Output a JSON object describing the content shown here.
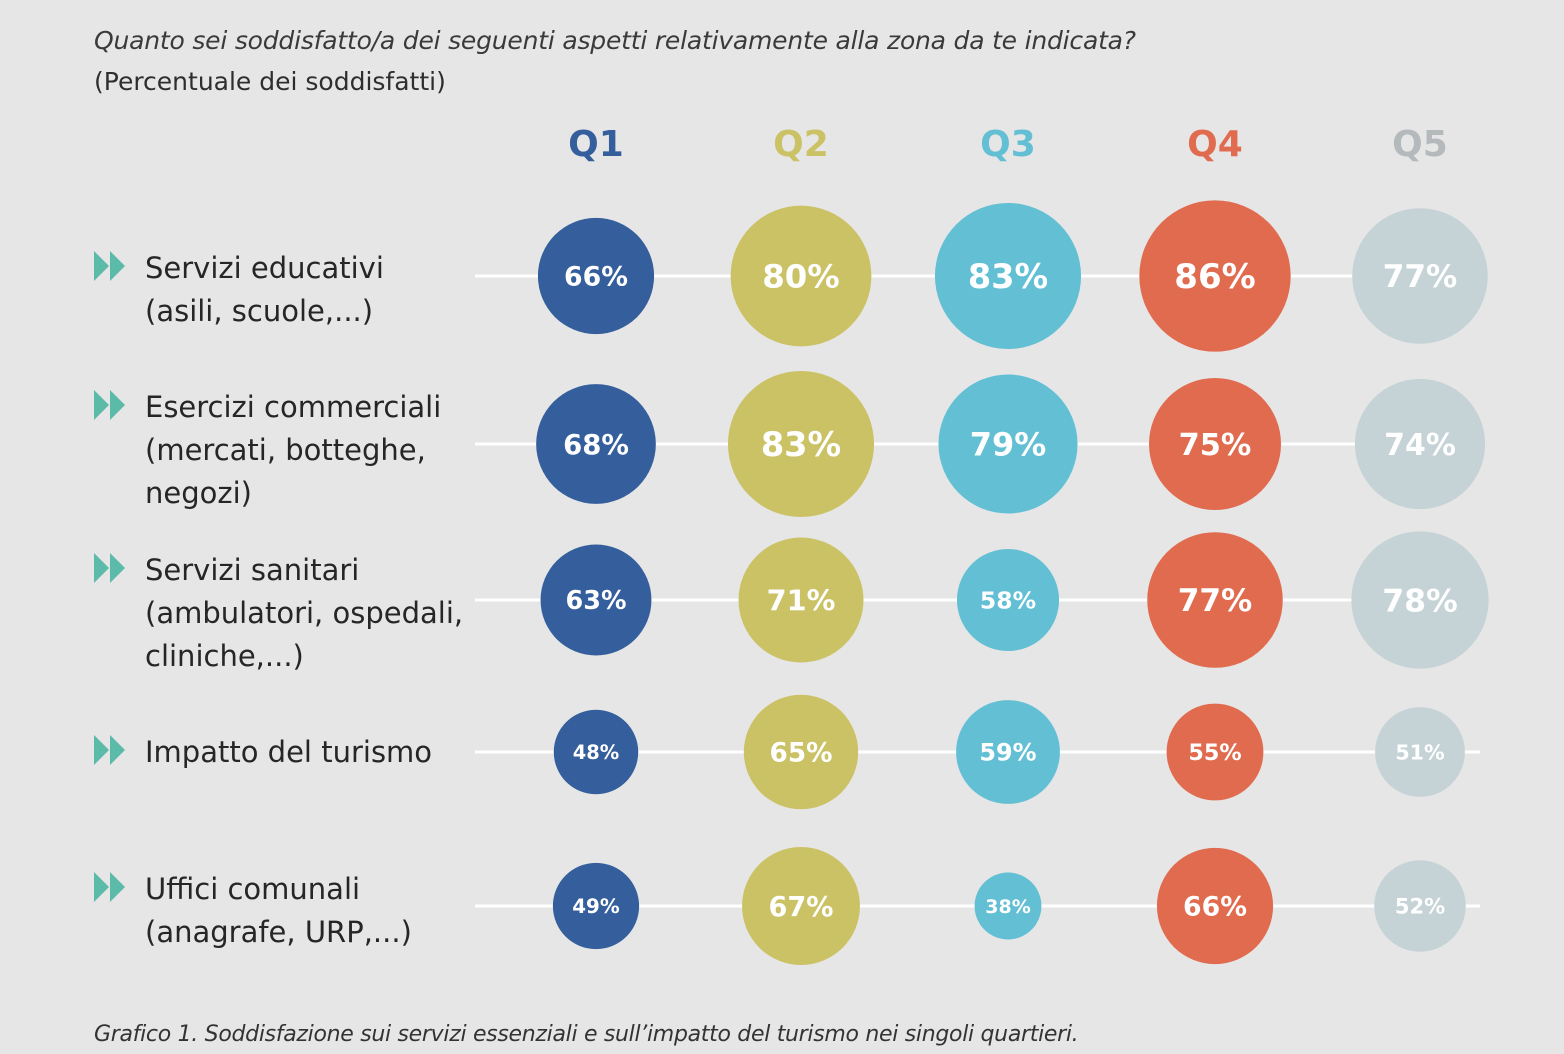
{
  "title": "Quanto sei soddisfatto/a dei seguenti aspetti relativamente alla zona da te indicata?",
  "subtitle": "(Percentuale dei soddisfatti)",
  "caption": "Grafico 1. Soddisfazione sui servizi essenziali e sull’impatto del turismo nei singoli quartieri.",
  "colors": {
    "background": "#e6e6e6",
    "Q1": "#345e9c",
    "Q2": "#cbc266",
    "Q3": "#62bfd4",
    "Q4": "#e06b4f",
    "Q5": "#c5d3d7",
    "Q5_header": "#b4b9bb",
    "arrow": "#5bbaa8",
    "connector": "#ffffff"
  },
  "rows": [
    {
      "label": "Servizi educativi\n(asili, scuole,...)"
    },
    {
      "label": "Esercizi commerciali\n(mercati, botteghe,\nnegozi)"
    },
    {
      "label": "Servizi sanitari\n(ambulatori, ospedali,\ncliniche,...)"
    },
    {
      "label": "Impatto del turismo"
    },
    {
      "label": "Uffici comunali\n(anagrafe, URP,...)"
    }
  ],
  "chart_data": {
    "type": "bubble-matrix",
    "title": "Quanto sei soddisfatto/a dei seguenti aspetti relativamente alla zona da te indicata?",
    "subtitle": "(Percentuale dei soddisfatti)",
    "unit": "%",
    "columns": [
      "Q1",
      "Q2",
      "Q3",
      "Q4",
      "Q5"
    ],
    "categories": [
      "Servizi educativi (asili, scuole,...)",
      "Esercizi commerciali (mercati, botteghe, negozi)",
      "Servizi sanitari (ambulatori, ospedali, cliniche,...)",
      "Impatto del turismo",
      "Uffici comunali (anagrafe, URP,...)"
    ],
    "series": [
      {
        "name": "Q1",
        "values": [
          66,
          68,
          63,
          48,
          49
        ]
      },
      {
        "name": "Q2",
        "values": [
          80,
          83,
          71,
          65,
          67
        ]
      },
      {
        "name": "Q3",
        "values": [
          83,
          79,
          58,
          59,
          38
        ]
      },
      {
        "name": "Q4",
        "values": [
          86,
          75,
          77,
          55,
          66
        ]
      },
      {
        "name": "Q5",
        "values": [
          77,
          74,
          78,
          51,
          52
        ]
      }
    ],
    "legend": "none",
    "grid": false
  }
}
